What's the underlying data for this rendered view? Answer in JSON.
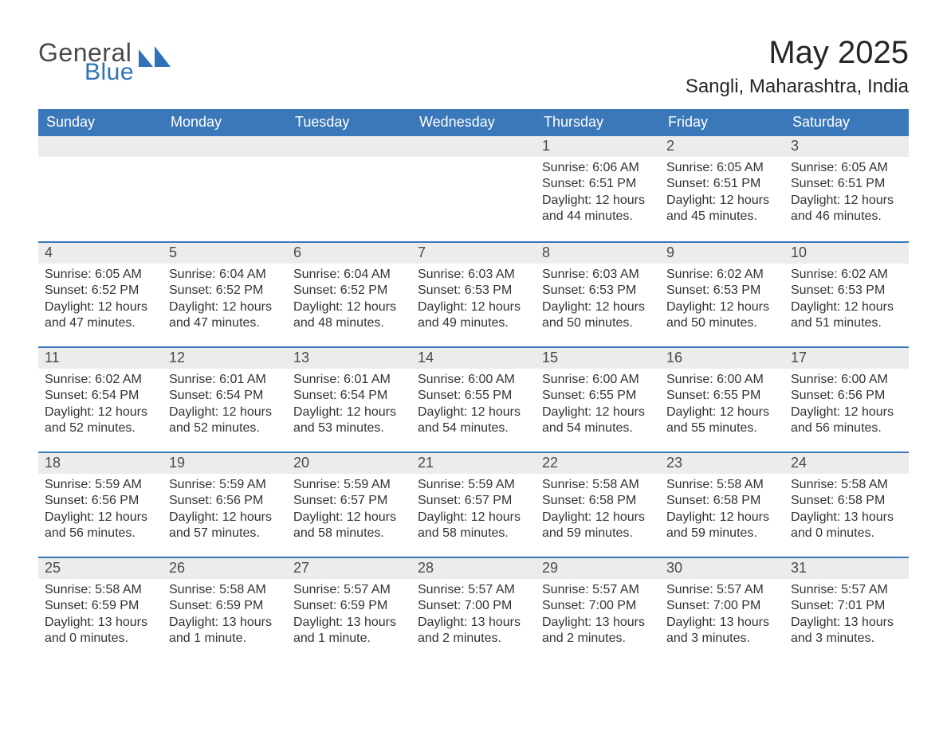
{
  "logo": {
    "text_general": "General",
    "text_blue": "Blue",
    "mark_fill": "#2f72b8"
  },
  "title": "May 2025",
  "location": "Sangli, Maharashtra, India",
  "colors": {
    "header_bg": "#3a78b9",
    "header_text": "#ffffff",
    "daybar_bg": "#ececec",
    "daybar_border": "#3a78b9",
    "body_text": "#333333",
    "page_bg": "#ffffff"
  },
  "weekdays": [
    "Sunday",
    "Monday",
    "Tuesday",
    "Wednesday",
    "Thursday",
    "Friday",
    "Saturday"
  ],
  "first_weekday_index": 4,
  "days": [
    {
      "n": 1,
      "sunrise": "6:06 AM",
      "sunset": "6:51 PM",
      "daylight": "12 hours and 44 minutes."
    },
    {
      "n": 2,
      "sunrise": "6:05 AM",
      "sunset": "6:51 PM",
      "daylight": "12 hours and 45 minutes."
    },
    {
      "n": 3,
      "sunrise": "6:05 AM",
      "sunset": "6:51 PM",
      "daylight": "12 hours and 46 minutes."
    },
    {
      "n": 4,
      "sunrise": "6:05 AM",
      "sunset": "6:52 PM",
      "daylight": "12 hours and 47 minutes."
    },
    {
      "n": 5,
      "sunrise": "6:04 AM",
      "sunset": "6:52 PM",
      "daylight": "12 hours and 47 minutes."
    },
    {
      "n": 6,
      "sunrise": "6:04 AM",
      "sunset": "6:52 PM",
      "daylight": "12 hours and 48 minutes."
    },
    {
      "n": 7,
      "sunrise": "6:03 AM",
      "sunset": "6:53 PM",
      "daylight": "12 hours and 49 minutes."
    },
    {
      "n": 8,
      "sunrise": "6:03 AM",
      "sunset": "6:53 PM",
      "daylight": "12 hours and 50 minutes."
    },
    {
      "n": 9,
      "sunrise": "6:02 AM",
      "sunset": "6:53 PM",
      "daylight": "12 hours and 50 minutes."
    },
    {
      "n": 10,
      "sunrise": "6:02 AM",
      "sunset": "6:53 PM",
      "daylight": "12 hours and 51 minutes."
    },
    {
      "n": 11,
      "sunrise": "6:02 AM",
      "sunset": "6:54 PM",
      "daylight": "12 hours and 52 minutes."
    },
    {
      "n": 12,
      "sunrise": "6:01 AM",
      "sunset": "6:54 PM",
      "daylight": "12 hours and 52 minutes."
    },
    {
      "n": 13,
      "sunrise": "6:01 AM",
      "sunset": "6:54 PM",
      "daylight": "12 hours and 53 minutes."
    },
    {
      "n": 14,
      "sunrise": "6:00 AM",
      "sunset": "6:55 PM",
      "daylight": "12 hours and 54 minutes."
    },
    {
      "n": 15,
      "sunrise": "6:00 AM",
      "sunset": "6:55 PM",
      "daylight": "12 hours and 54 minutes."
    },
    {
      "n": 16,
      "sunrise": "6:00 AM",
      "sunset": "6:55 PM",
      "daylight": "12 hours and 55 minutes."
    },
    {
      "n": 17,
      "sunrise": "6:00 AM",
      "sunset": "6:56 PM",
      "daylight": "12 hours and 56 minutes."
    },
    {
      "n": 18,
      "sunrise": "5:59 AM",
      "sunset": "6:56 PM",
      "daylight": "12 hours and 56 minutes."
    },
    {
      "n": 19,
      "sunrise": "5:59 AM",
      "sunset": "6:56 PM",
      "daylight": "12 hours and 57 minutes."
    },
    {
      "n": 20,
      "sunrise": "5:59 AM",
      "sunset": "6:57 PM",
      "daylight": "12 hours and 58 minutes."
    },
    {
      "n": 21,
      "sunrise": "5:59 AM",
      "sunset": "6:57 PM",
      "daylight": "12 hours and 58 minutes."
    },
    {
      "n": 22,
      "sunrise": "5:58 AM",
      "sunset": "6:58 PM",
      "daylight": "12 hours and 59 minutes."
    },
    {
      "n": 23,
      "sunrise": "5:58 AM",
      "sunset": "6:58 PM",
      "daylight": "12 hours and 59 minutes."
    },
    {
      "n": 24,
      "sunrise": "5:58 AM",
      "sunset": "6:58 PM",
      "daylight": "13 hours and 0 minutes."
    },
    {
      "n": 25,
      "sunrise": "5:58 AM",
      "sunset": "6:59 PM",
      "daylight": "13 hours and 0 minutes."
    },
    {
      "n": 26,
      "sunrise": "5:58 AM",
      "sunset": "6:59 PM",
      "daylight": "13 hours and 1 minute."
    },
    {
      "n": 27,
      "sunrise": "5:57 AM",
      "sunset": "6:59 PM",
      "daylight": "13 hours and 1 minute."
    },
    {
      "n": 28,
      "sunrise": "5:57 AM",
      "sunset": "7:00 PM",
      "daylight": "13 hours and 2 minutes."
    },
    {
      "n": 29,
      "sunrise": "5:57 AM",
      "sunset": "7:00 PM",
      "daylight": "13 hours and 2 minutes."
    },
    {
      "n": 30,
      "sunrise": "5:57 AM",
      "sunset": "7:00 PM",
      "daylight": "13 hours and 3 minutes."
    },
    {
      "n": 31,
      "sunrise": "5:57 AM",
      "sunset": "7:01 PM",
      "daylight": "13 hours and 3 minutes."
    }
  ],
  "labels": {
    "sunrise": "Sunrise:",
    "sunset": "Sunset:",
    "daylight": "Daylight:"
  }
}
